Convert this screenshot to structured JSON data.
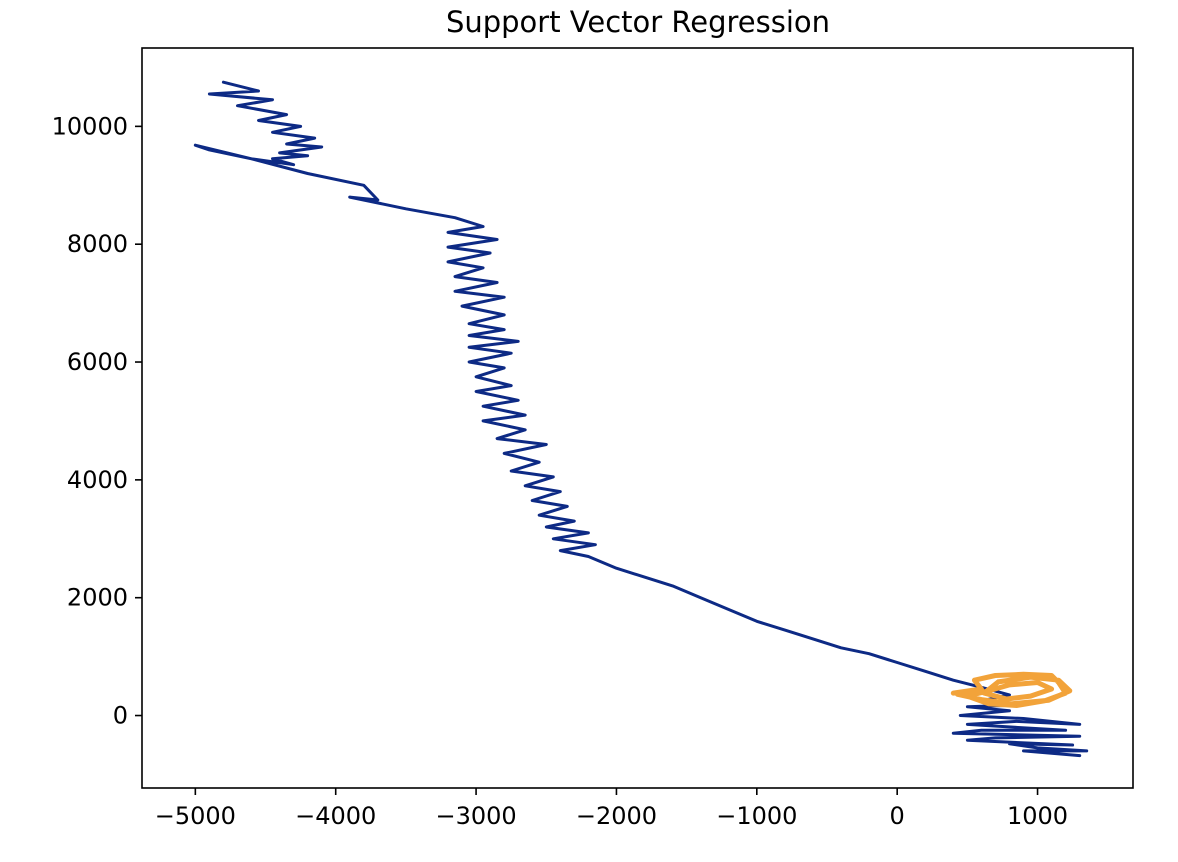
{
  "chart_data": {
    "type": "line",
    "title": "Support Vector Regression",
    "xlabel": "",
    "ylabel": "",
    "xlim": [
      -5380,
      1680
    ],
    "ylim": [
      -1230,
      11330
    ],
    "xticks": [
      -5000,
      -4000,
      -3000,
      -2000,
      -1000,
      0,
      1000
    ],
    "yticks": [
      0,
      2000,
      4000,
      6000,
      8000,
      10000
    ],
    "xtick_labels": [
      "−5000",
      "−4000",
      "−3000",
      "−2000",
      "−1000",
      "0",
      "1000"
    ],
    "ytick_labels": [
      "0",
      "2000",
      "4000",
      "6000",
      "8000",
      "10000"
    ],
    "grid": false,
    "legend": "none",
    "series": [
      {
        "color": "#0d2a85",
        "style": "line",
        "points": [
          [
            -4800,
            10750
          ],
          [
            -4550,
            10600
          ],
          [
            -4900,
            10550
          ],
          [
            -4450,
            10450
          ],
          [
            -4700,
            10350
          ],
          [
            -4350,
            10200
          ],
          [
            -4550,
            10100
          ],
          [
            -4250,
            10000
          ],
          [
            -4450,
            9900
          ],
          [
            -4150,
            9800
          ],
          [
            -4350,
            9700
          ],
          [
            -4100,
            9650
          ],
          [
            -4400,
            9550
          ],
          [
            -4200,
            9500
          ],
          [
            -4450,
            9450
          ],
          [
            -4300,
            9350
          ],
          [
            -4600,
            9450
          ],
          [
            -5000,
            9680
          ],
          [
            -4900,
            9600
          ],
          [
            -4600,
            9450
          ],
          [
            -4200,
            9200
          ],
          [
            -3800,
            9000
          ],
          [
            -3700,
            8750
          ],
          [
            -3900,
            8800
          ],
          [
            -3500,
            8600
          ],
          [
            -3150,
            8450
          ],
          [
            -2950,
            8300
          ],
          [
            -3200,
            8200
          ],
          [
            -2850,
            8080
          ],
          [
            -3200,
            7950
          ],
          [
            -2900,
            7850
          ],
          [
            -3200,
            7700
          ],
          [
            -2950,
            7600
          ],
          [
            -3150,
            7450
          ],
          [
            -2850,
            7350
          ],
          [
            -3150,
            7200
          ],
          [
            -2800,
            7100
          ],
          [
            -3100,
            6950
          ],
          [
            -2800,
            6800
          ],
          [
            -3050,
            6650
          ],
          [
            -2800,
            6550
          ],
          [
            -3050,
            6450
          ],
          [
            -2700,
            6350
          ],
          [
            -3050,
            6250
          ],
          [
            -2750,
            6150
          ],
          [
            -3050,
            6000
          ],
          [
            -2800,
            5900
          ],
          [
            -3000,
            5750
          ],
          [
            -2750,
            5600
          ],
          [
            -3000,
            5500
          ],
          [
            -2700,
            5350
          ],
          [
            -2950,
            5250
          ],
          [
            -2650,
            5100
          ],
          [
            -2950,
            5000
          ],
          [
            -2650,
            4850
          ],
          [
            -2850,
            4700
          ],
          [
            -2500,
            4600
          ],
          [
            -2800,
            4450
          ],
          [
            -2550,
            4300
          ],
          [
            -2750,
            4150
          ],
          [
            -2450,
            4050
          ],
          [
            -2650,
            3900
          ],
          [
            -2400,
            3800
          ],
          [
            -2600,
            3650
          ],
          [
            -2350,
            3550
          ],
          [
            -2550,
            3400
          ],
          [
            -2300,
            3300
          ],
          [
            -2500,
            3200
          ],
          [
            -2200,
            3100
          ],
          [
            -2450,
            3000
          ],
          [
            -2150,
            2900
          ],
          [
            -2400,
            2800
          ],
          [
            -2200,
            2700
          ],
          [
            -2000,
            2500
          ],
          [
            -1800,
            2350
          ],
          [
            -1600,
            2200
          ],
          [
            -1400,
            2000
          ],
          [
            -1200,
            1800
          ],
          [
            -1000,
            1600
          ],
          [
            -800,
            1450
          ],
          [
            -600,
            1300
          ],
          [
            -400,
            1150
          ],
          [
            -200,
            1050
          ],
          [
            0,
            900
          ],
          [
            200,
            750
          ],
          [
            400,
            600
          ],
          [
            600,
            480
          ],
          [
            800,
            350
          ],
          [
            600,
            250
          ],
          [
            900,
            180
          ],
          [
            500,
            150
          ],
          [
            800,
            80
          ],
          [
            450,
            0
          ],
          [
            900,
            -50
          ],
          [
            1300,
            -150
          ],
          [
            850,
            -100
          ],
          [
            500,
            -150
          ],
          [
            1200,
            -250
          ],
          [
            600,
            -250
          ],
          [
            400,
            -300
          ],
          [
            1300,
            -350
          ],
          [
            700,
            -380
          ],
          [
            500,
            -420
          ],
          [
            1250,
            -500
          ],
          [
            800,
            -480
          ],
          [
            1000,
            -550
          ],
          [
            1350,
            -600
          ],
          [
            900,
            -600
          ],
          [
            1300,
            -680
          ]
        ]
      },
      {
        "color": "#f2a33a",
        "style": "line",
        "points": [
          [
            400,
            380
          ],
          [
            600,
            450
          ],
          [
            550,
            600
          ],
          [
            700,
            680
          ],
          [
            900,
            700
          ],
          [
            1100,
            680
          ],
          [
            1150,
            560
          ],
          [
            1200,
            380
          ],
          [
            1050,
            250
          ],
          [
            850,
            170
          ],
          [
            650,
            200
          ],
          [
            500,
            330
          ],
          [
            650,
            420
          ],
          [
            800,
            520
          ],
          [
            1000,
            560
          ],
          [
            1100,
            450
          ],
          [
            950,
            330
          ],
          [
            780,
            280
          ],
          [
            620,
            380
          ],
          [
            720,
            570
          ],
          [
            950,
            650
          ],
          [
            1150,
            600
          ],
          [
            1230,
            420
          ],
          [
            1080,
            260
          ],
          [
            820,
            200
          ],
          [
            600,
            270
          ],
          [
            430,
            360
          ]
        ]
      }
    ]
  }
}
